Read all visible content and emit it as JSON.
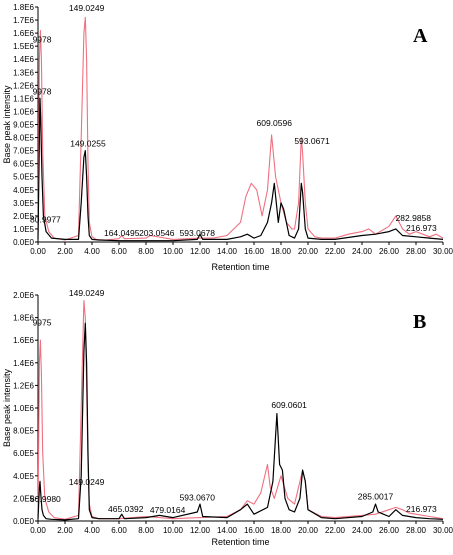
{
  "chart_data": [
    {
      "type": "line",
      "panel_label": "A",
      "xlabel": "Retention time",
      "ylabel": "Base peak intensity",
      "xlim": [
        0,
        30
      ],
      "ylim": [
        0,
        1800000
      ],
      "x_ticks": [
        0,
        2,
        4,
        6,
        8,
        10,
        12,
        14,
        16,
        18,
        20,
        22,
        24,
        26,
        28,
        30
      ],
      "x_tick_labels": [
        "0.00",
        "2.00",
        "4.00",
        "6.00",
        "8.00",
        "10.00",
        "12.00",
        "14.00",
        "16.00",
        "18.00",
        "20.00",
        "22.00",
        "24.00",
        "26.00",
        "28.00",
        "30.00"
      ],
      "y_ticks": [
        0,
        100000,
        200000,
        300000,
        400000,
        500000,
        600000,
        700000,
        800000,
        900000,
        1000000,
        1100000,
        1200000,
        1300000,
        1400000,
        1500000,
        1600000,
        1700000,
        1800000
      ],
      "y_tick_labels": [
        "0.0E0",
        "1.0E5",
        "2.0E5",
        "3.0E5",
        "4.0E5",
        "5.0E5",
        "6.0E5",
        "7.0E5",
        "8.0E5",
        "9.0E5",
        "1.0E6",
        "1.1E6",
        "1.2E6",
        "1.3E6",
        "1.4E6",
        "1.5E6",
        "1.6E6",
        "1.7E6",
        "1.8E6"
      ],
      "grid": false,
      "series": [
        {
          "color": "#f07080",
          "x": [
            0,
            0.1,
            0.18,
            0.25,
            0.35,
            0.5,
            0.8,
            1.2,
            2,
            3,
            3.2,
            3.4,
            3.5,
            3.6,
            3.7,
            3.8,
            4,
            4.3,
            5,
            6,
            6.2,
            6.4,
            8,
            8.3,
            10,
            12,
            13,
            14,
            15,
            15.4,
            15.8,
            16.2,
            16.6,
            17,
            17.3,
            17.6,
            18,
            18.4,
            18.8,
            19,
            19.3,
            19.5,
            19.6,
            19.8,
            20,
            20.5,
            21,
            22,
            23,
            24,
            24.5,
            25,
            26,
            26.5,
            27,
            27.5,
            28,
            28.5,
            29,
            29.5,
            30
          ],
          "y": [
            50000,
            1400000,
            1620000,
            1400000,
            700000,
            200000,
            80000,
            30000,
            15000,
            50000,
            800000,
            1600000,
            1720000,
            1400000,
            600000,
            150000,
            40000,
            20000,
            15000,
            25000,
            50000,
            25000,
            30000,
            50000,
            20000,
            30000,
            30000,
            50000,
            150000,
            350000,
            450000,
            400000,
            200000,
            400000,
            820000,
            500000,
            300000,
            150000,
            100000,
            100000,
            300000,
            800000,
            680000,
            300000,
            100000,
            40000,
            30000,
            30000,
            60000,
            80000,
            100000,
            60000,
            120000,
            200000,
            100000,
            60000,
            80000,
            60000,
            40000,
            60000,
            30000
          ]
        },
        {
          "color": "#000000",
          "x": [
            0,
            0.1,
            0.15,
            0.2,
            0.3,
            0.4,
            0.6,
            1,
            2,
            3,
            3.2,
            3.4,
            3.5,
            3.6,
            3.7,
            3.8,
            4,
            4.5,
            6,
            8,
            10,
            11.8,
            12,
            12.2,
            14,
            15,
            15.5,
            16,
            16.5,
            17,
            17.3,
            17.5,
            17.8,
            18,
            18.2,
            18.6,
            19,
            19.3,
            19.5,
            19.6,
            19.8,
            20,
            21,
            22,
            24,
            25,
            26,
            26.5,
            27,
            28,
            29,
            30
          ],
          "y": [
            20000,
            800000,
            1100000,
            950000,
            500000,
            200000,
            80000,
            30000,
            20000,
            20000,
            300000,
            650000,
            700000,
            500000,
            200000,
            50000,
            20000,
            15000,
            10000,
            10000,
            10000,
            20000,
            60000,
            20000,
            20000,
            40000,
            60000,
            30000,
            50000,
            150000,
            300000,
            450000,
            150000,
            300000,
            250000,
            50000,
            30000,
            100000,
            450000,
            380000,
            100000,
            30000,
            20000,
            20000,
            50000,
            60000,
            80000,
            100000,
            50000,
            40000,
            30000,
            20000
          ]
        }
      ],
      "annotations": [
        {
          "text": "9978",
          "x": 0.3,
          "y": 1530000
        },
        {
          "text": "149.0249",
          "x": 3.6,
          "y": 1770000
        },
        {
          "text": "9978",
          "x": 0.3,
          "y": 1130000
        },
        {
          "text": "149.0255",
          "x": 3.7,
          "y": 730000
        },
        {
          "text": "80.9977",
          "x": 0.55,
          "y": 150000
        },
        {
          "text": "164.0495",
          "x": 6.2,
          "y": 45000
        },
        {
          "text": "203.0546",
          "x": 8.8,
          "y": 45000
        },
        {
          "text": "593.0678",
          "x": 11.8,
          "y": 45000
        },
        {
          "text": "609.0596",
          "x": 17.5,
          "y": 890000
        },
        {
          "text": "593.0671",
          "x": 20.3,
          "y": 750000
        },
        {
          "text": "282.9858",
          "x": 27.8,
          "y": 160000
        },
        {
          "text": "216.973",
          "x": 28.4,
          "y": 85000
        }
      ]
    },
    {
      "type": "line",
      "panel_label": "B",
      "xlabel": "Retention time",
      "ylabel": "Base peak intensity",
      "xlim": [
        0,
        30
      ],
      "ylim": [
        0,
        2000000
      ],
      "x_ticks": [
        0,
        2,
        4,
        6,
        8,
        10,
        12,
        14,
        16,
        18,
        20,
        22,
        24,
        26,
        28,
        30
      ],
      "x_tick_labels": [
        "0.00",
        "2.00",
        "4.00",
        "6.00",
        "8.00",
        "10.00",
        "12.00",
        "14.00",
        "16.00",
        "18.00",
        "20.00",
        "22.00",
        "24.00",
        "26.00",
        "28.00",
        "30.00"
      ],
      "y_ticks": [
        0,
        200000,
        400000,
        600000,
        800000,
        1000000,
        1200000,
        1400000,
        1600000,
        1800000,
        2000000
      ],
      "y_tick_labels": [
        "0.0E0",
        "2.0E5",
        "4.0E5",
        "6.0E5",
        "8.0E5",
        "1.0E6",
        "1.2E6",
        "1.4E6",
        "1.6E6",
        "1.8E6",
        "2.0E6"
      ],
      "grid": false,
      "series": [
        {
          "color": "#f07080",
          "x": [
            0,
            0.1,
            0.18,
            0.25,
            0.35,
            0.5,
            0.8,
            1.2,
            2,
            3,
            3.2,
            3.4,
            3.5,
            3.6,
            3.7,
            3.8,
            4,
            4.5,
            6,
            8,
            10,
            12,
            14,
            15,
            15.5,
            16,
            16.5,
            16.8,
            17,
            17.2,
            17.5,
            18,
            18.5,
            19,
            19.3,
            19.6,
            19.8,
            20,
            21,
            22,
            24,
            25,
            26,
            26.5,
            27,
            27.5,
            28,
            29,
            30
          ],
          "y": [
            50000,
            1400000,
            1600000,
            1300000,
            600000,
            200000,
            80000,
            30000,
            15000,
            50000,
            1000000,
            1950000,
            1800000,
            1200000,
            500000,
            150000,
            40000,
            20000,
            20000,
            40000,
            20000,
            30000,
            40000,
            100000,
            180000,
            150000,
            250000,
            400000,
            500000,
            300000,
            200000,
            400000,
            200000,
            150000,
            300000,
            450000,
            350000,
            100000,
            40000,
            30000,
            50000,
            60000,
            100000,
            120000,
            100000,
            70000,
            60000,
            40000,
            20000
          ]
        },
        {
          "color": "#000000",
          "x": [
            0,
            0.1,
            0.15,
            0.2,
            0.3,
            0.4,
            0.6,
            1,
            2,
            3,
            3.2,
            3.4,
            3.5,
            3.6,
            3.7,
            3.8,
            4,
            4.5,
            6,
            6.2,
            6.4,
            8,
            9,
            10,
            11.8,
            12,
            12.2,
            14,
            15,
            15.5,
            16,
            17,
            17.4,
            17.7,
            17.9,
            18.1,
            18.3,
            18.6,
            19,
            19.4,
            19.6,
            19.8,
            20,
            21,
            22,
            24,
            24.8,
            25,
            25.2,
            26,
            26.5,
            27,
            28,
            29,
            30
          ],
          "y": [
            20000,
            300000,
            350000,
            250000,
            100000,
            50000,
            20000,
            15000,
            10000,
            20000,
            400000,
            1500000,
            1750000,
            1400000,
            600000,
            100000,
            30000,
            20000,
            20000,
            60000,
            20000,
            30000,
            50000,
            30000,
            80000,
            150000,
            40000,
            30000,
            100000,
            150000,
            60000,
            120000,
            350000,
            950000,
            500000,
            450000,
            200000,
            100000,
            80000,
            200000,
            450000,
            350000,
            100000,
            30000,
            20000,
            40000,
            80000,
            150000,
            80000,
            40000,
            100000,
            50000,
            30000,
            20000,
            15000
          ]
        }
      ],
      "annotations": [
        {
          "text": "149.0249",
          "x": 3.6,
          "y": 1990000
        },
        {
          "text": "9975",
          "x": 0.3,
          "y": 1730000
        },
        {
          "text": "80.9980",
          "x": 0.55,
          "y": 170000
        },
        {
          "text": "149.0249",
          "x": 3.6,
          "y": 320000
        },
        {
          "text": "465.0392",
          "x": 6.5,
          "y": 80000
        },
        {
          "text": "479.0164",
          "x": 9.6,
          "y": 70000
        },
        {
          "text": "593.0670",
          "x": 11.8,
          "y": 180000
        },
        {
          "text": "609.0601",
          "x": 18.6,
          "y": 1000000
        },
        {
          "text": "285.0017",
          "x": 25.0,
          "y": 190000
        },
        {
          "text": "216.973",
          "x": 28.4,
          "y": 80000
        }
      ]
    }
  ]
}
